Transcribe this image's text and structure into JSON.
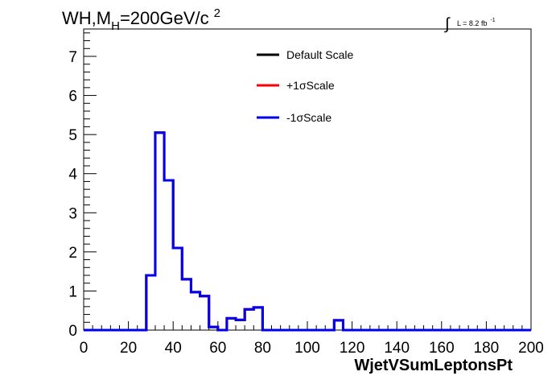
{
  "title": {
    "main": "WH,M",
    "sub": "H",
    "value": "=200GeV/c",
    "sup": "2"
  },
  "lumi": {
    "integral": "∫",
    "text": "L = 8.2 fb",
    "sup": "-1"
  },
  "chart_data": {
    "type": "line",
    "step": true,
    "xlabel": "WjetVSumLeptonsPt",
    "ylabel": "",
    "xlim": [
      0,
      200
    ],
    "ylim": [
      0,
      7.7
    ],
    "xticks": [
      0,
      20,
      40,
      60,
      80,
      100,
      120,
      140,
      160,
      180,
      200
    ],
    "yticks": [
      0,
      1,
      2,
      3,
      4,
      5,
      6,
      7
    ],
    "bin_edges": [
      0,
      4,
      8,
      12,
      16,
      20,
      24,
      28,
      32,
      36,
      40,
      44,
      48,
      52,
      56,
      60,
      64,
      68,
      72,
      76,
      80,
      84,
      88,
      92,
      96,
      100,
      104,
      108,
      112,
      116,
      120,
      124,
      128,
      132,
      136,
      140,
      144,
      148,
      152,
      156,
      160,
      164,
      168,
      172,
      176,
      180,
      184,
      188,
      192,
      196,
      200
    ],
    "series": [
      {
        "name": "Default Scale",
        "color": "#000000",
        "values": [
          0,
          0,
          0,
          0,
          0,
          0,
          0,
          1.4,
          5.05,
          3.83,
          2.1,
          1.3,
          0.97,
          0.87,
          0.08,
          0,
          0.3,
          0.26,
          0.53,
          0.58,
          0,
          0,
          0,
          0,
          0,
          0,
          0,
          0,
          0.25,
          0,
          0,
          0,
          0,
          0,
          0,
          0,
          0,
          0,
          0,
          0,
          0,
          0,
          0,
          0,
          0,
          0,
          0,
          0,
          0,
          0
        ]
      },
      {
        "name": "+1σScale",
        "color": "#ff0000",
        "values": [
          0,
          0,
          0,
          0,
          0,
          0,
          0,
          1.4,
          5.05,
          3.83,
          2.1,
          1.3,
          0.97,
          0.87,
          0.08,
          0,
          0.3,
          0.26,
          0.53,
          0.58,
          0,
          0,
          0,
          0,
          0,
          0,
          0,
          0,
          0.25,
          0,
          0,
          0,
          0,
          0,
          0,
          0,
          0,
          0,
          0,
          0,
          0,
          0,
          0,
          0,
          0,
          0,
          0,
          0,
          0,
          0
        ]
      },
      {
        "name": "-1σScale",
        "color": "#0000ee",
        "values": [
          0,
          0,
          0,
          0,
          0,
          0,
          0,
          1.4,
          5.05,
          3.83,
          2.1,
          1.3,
          0.97,
          0.87,
          0.08,
          0,
          0.3,
          0.26,
          0.53,
          0.58,
          0,
          0,
          0,
          0,
          0,
          0,
          0,
          0,
          0.25,
          0,
          0,
          0,
          0,
          0,
          0,
          0,
          0,
          0,
          0,
          0,
          0,
          0,
          0,
          0,
          0,
          0,
          0,
          0,
          0,
          0
        ]
      }
    ],
    "legend_position": "top-center",
    "grid": false
  }
}
